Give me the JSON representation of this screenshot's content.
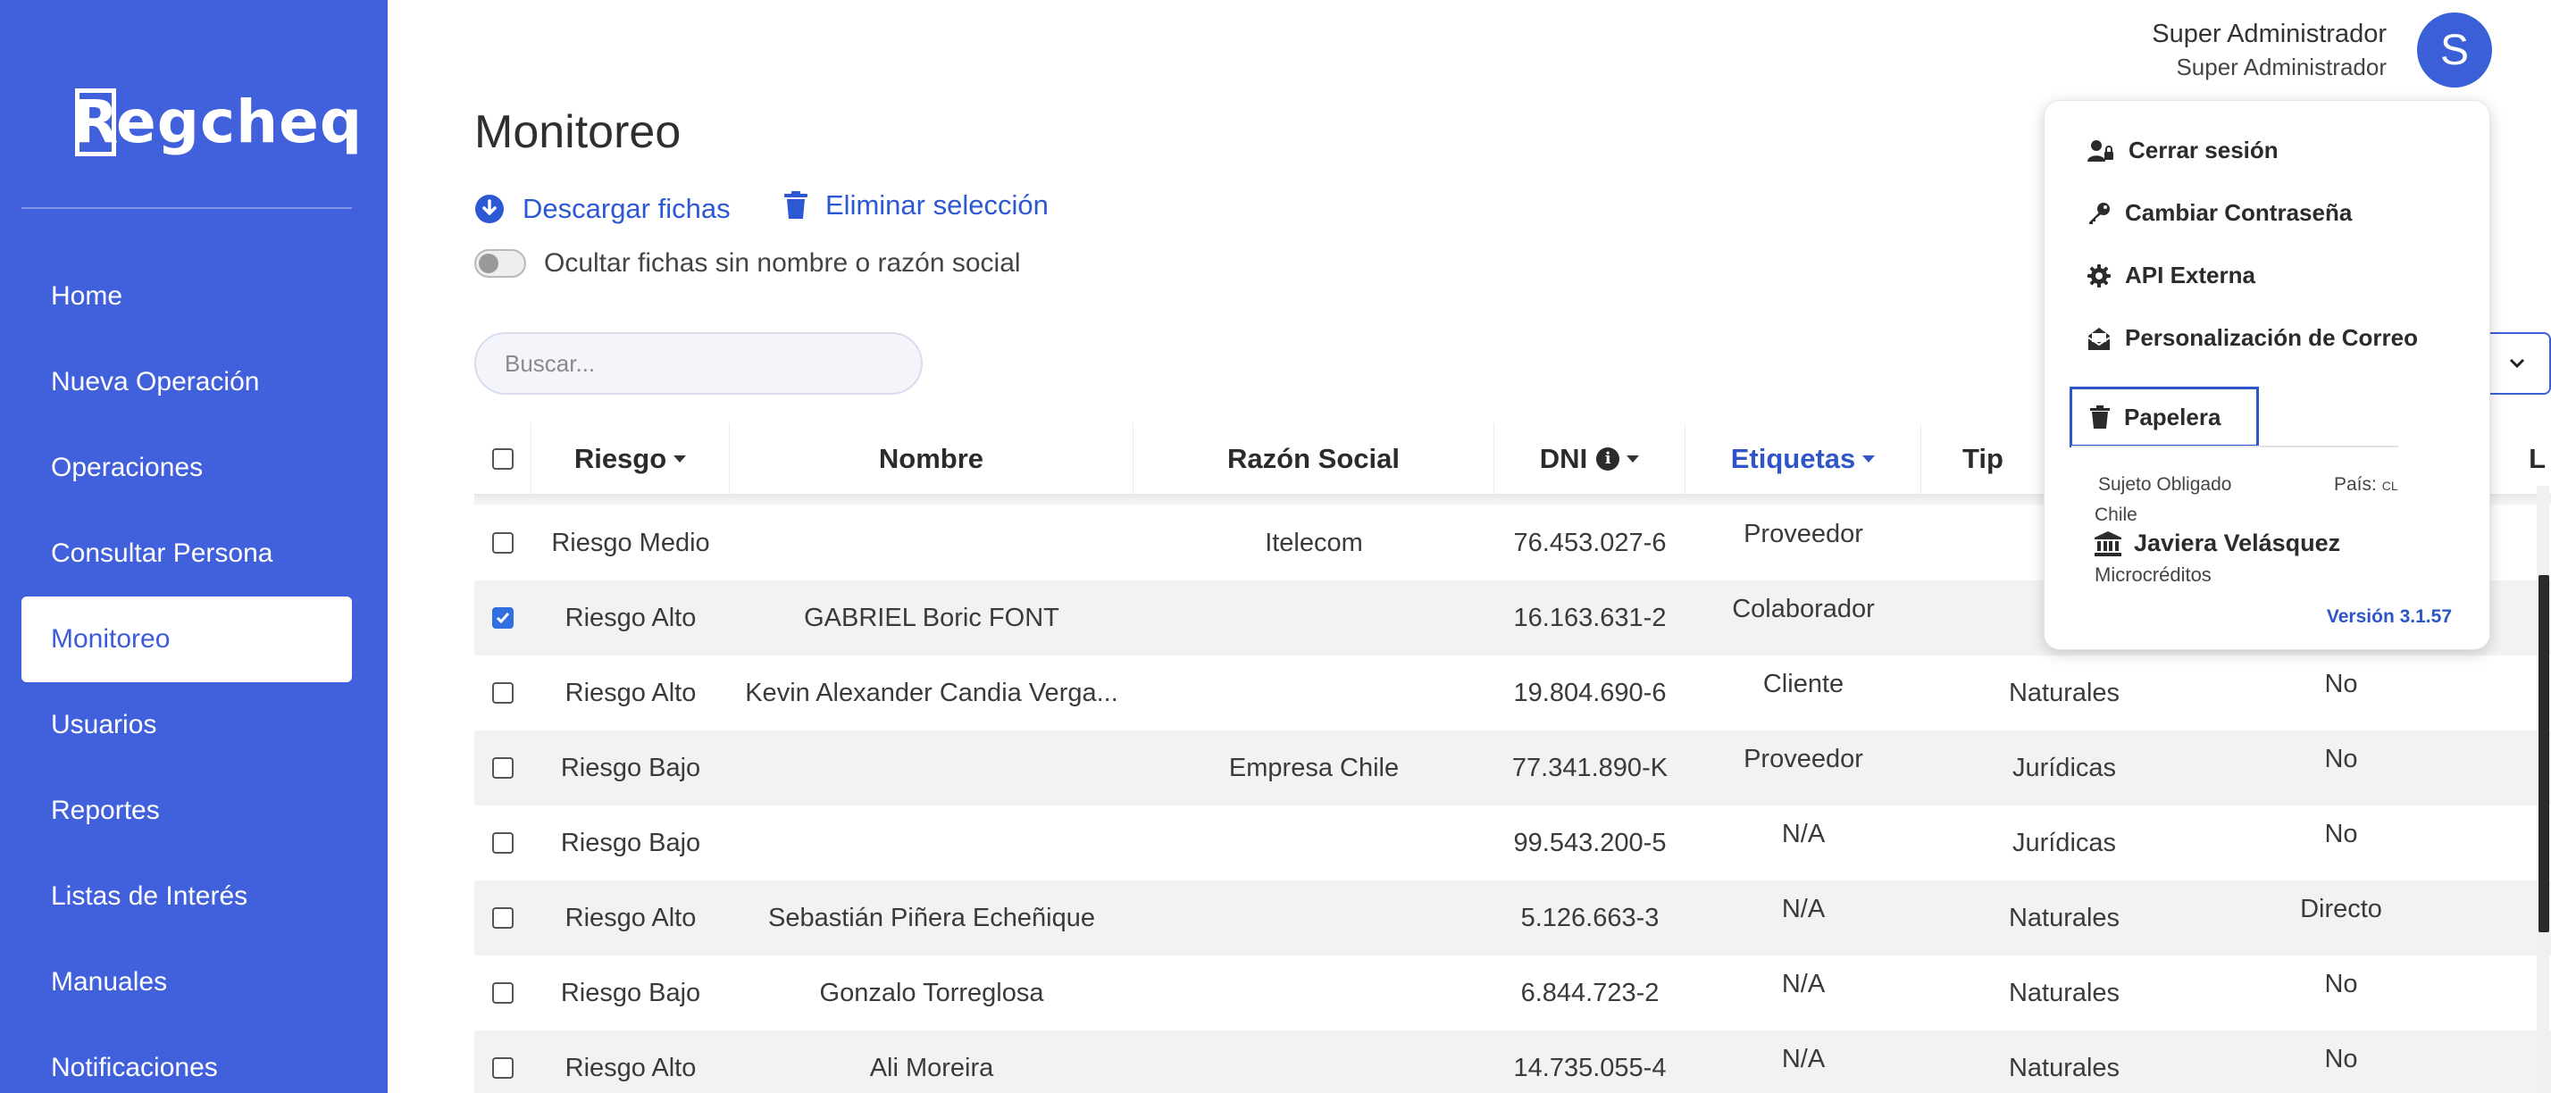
{
  "app": {
    "logo_text": "Regcheq"
  },
  "sidebar": {
    "items": [
      {
        "label": "Home"
      },
      {
        "label": "Nueva Operación"
      },
      {
        "label": "Operaciones"
      },
      {
        "label": "Consultar Persona"
      },
      {
        "label": "Monitoreo",
        "active": true
      },
      {
        "label": "Usuarios"
      },
      {
        "label": "Reportes"
      },
      {
        "label": "Listas de Interés"
      },
      {
        "label": "Manuales"
      },
      {
        "label": "Notificaciones"
      }
    ]
  },
  "header": {
    "user_name": "Super Administrador",
    "user_role": "Super Administrador",
    "avatar_letter": "S"
  },
  "main": {
    "title": "Monitoreo",
    "download_label": "Descargar fichas",
    "delete_label": "Eliminar selección",
    "toggle_label": "Ocultar fichas sin nombre o razón social",
    "search_placeholder": "Buscar..."
  },
  "table": {
    "columns": [
      "Riesgo",
      "Nombre",
      "Razón Social",
      "DNI",
      "Etiquetas",
      "Tip",
      "L"
    ],
    "rows": [
      {
        "checked": false,
        "riesgo": "Riesgo Medio",
        "nombre": "",
        "razon": "Itelecom",
        "dni": "76.453.027-6",
        "etiqueta": "Proveedor",
        "tipo": "",
        "extra": ""
      },
      {
        "checked": true,
        "riesgo": "Riesgo Alto",
        "nombre": "GABRIEL Boric FONT",
        "razon": "",
        "dni": "16.163.631-2",
        "etiqueta": "Colaborador",
        "tipo": "",
        "extra": ""
      },
      {
        "checked": false,
        "riesgo": "Riesgo Alto",
        "nombre": "Kevin Alexander Candia Verga...",
        "razon": "",
        "dni": "19.804.690-6",
        "etiqueta": "Cliente",
        "tipo": "Naturales",
        "extra": "No"
      },
      {
        "checked": false,
        "riesgo": "Riesgo Bajo",
        "nombre": "",
        "razon": "Empresa Chile",
        "dni": "77.341.890-K",
        "etiqueta": "Proveedor",
        "tipo": "Jurídicas",
        "extra": "No"
      },
      {
        "checked": false,
        "riesgo": "Riesgo Bajo",
        "nombre": "",
        "razon": "",
        "dni": "99.543.200-5",
        "etiqueta": "N/A",
        "tipo": "Jurídicas",
        "extra": "No"
      },
      {
        "checked": false,
        "riesgo": "Riesgo Alto",
        "nombre": "Sebastián Piñera Echeñique",
        "razon": "",
        "dni": "5.126.663-3",
        "etiqueta": "N/A",
        "tipo": "Naturales",
        "extra": "Directo"
      },
      {
        "checked": false,
        "riesgo": "Riesgo Bajo",
        "nombre": "Gonzalo Torreglosa",
        "razon": "",
        "dni": "6.844.723-2",
        "etiqueta": "N/A",
        "tipo": "Naturales",
        "extra": "No"
      },
      {
        "checked": false,
        "riesgo": "Riesgo Alto",
        "nombre": "Ali Moreira",
        "razon": "",
        "dni": "14.735.055-4",
        "etiqueta": "N/A",
        "tipo": "Naturales",
        "extra": "No"
      }
    ]
  },
  "user_menu": {
    "logout": "Cerrar sesión",
    "change_password": "Cambiar Contraseña",
    "api": "API Externa",
    "mail": "Personalización de Correo",
    "trash": "Papelera",
    "sujeto": "Sujeto Obligado",
    "pais_label": "País:",
    "pais_code": "CL",
    "country": "Chile",
    "person": "Javiera Velásquez",
    "company": "Microcréditos",
    "version": "Versión 3.1.57"
  },
  "colors": {
    "brand": "#4060dc",
    "link": "#2d58d4",
    "checkbox": "#2f6fe0"
  },
  "icons": {
    "download": "download-circle-icon",
    "delete": "trash-icon",
    "logout": "user-lock-icon",
    "password": "key-icon",
    "api": "gear-icon",
    "mail": "mail-open-icon",
    "trash": "trash-icon",
    "company": "building-columns-icon",
    "info": "info-icon",
    "dropdown": "chevron-down-icon"
  }
}
